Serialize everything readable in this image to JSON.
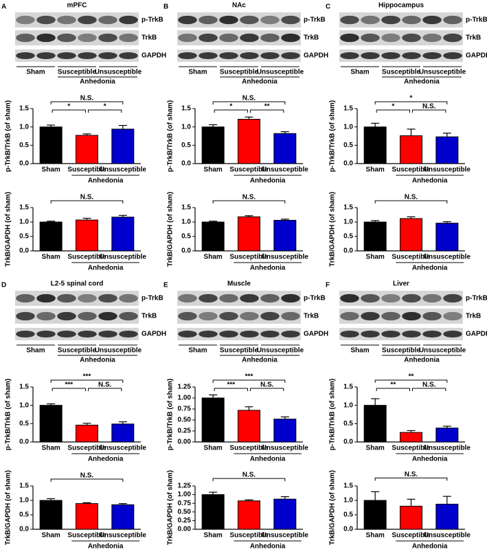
{
  "panels": [
    {
      "letter": "A",
      "title": "mPFC",
      "blot_rows": [
        "p-TrkB",
        "TrkB",
        "GAPDH"
      ],
      "groups": [
        "Sham",
        "Susceptible",
        "Unsusceptible"
      ],
      "group_label": "Anhedonia"
    },
    {
      "letter": "B",
      "title": "NAc",
      "blot_rows": [
        "p-TrkB",
        "TrkB",
        "GAPDH"
      ],
      "groups": [
        "Sham",
        "Susceptible",
        "Unsusceptible"
      ],
      "group_label": "Anhedonia"
    },
    {
      "letter": "C",
      "title": "Hippocampus",
      "blot_rows": [
        "p-TrkB",
        "TrkB",
        "GAPDH"
      ],
      "groups": [
        "Sham",
        "Susceptible",
        "Unsusceptible"
      ],
      "group_label": "Anhedonia"
    },
    {
      "letter": "D",
      "title": "L2-5 spinal cord",
      "blot_rows": [
        "p-TrkB",
        "TrkB",
        "GAPDH"
      ],
      "groups": [
        "Sham",
        "Susceptible",
        "Unsusceptible"
      ],
      "group_label": "Anhedonia"
    },
    {
      "letter": "E",
      "title": "Muscle",
      "blot_rows": [
        "p-TrkB",
        "TrkB",
        "GAPDH"
      ],
      "groups": [
        "Sham",
        "Susceptible",
        "Unsusceptible"
      ],
      "group_label": "Anhedonia"
    },
    {
      "letter": "F",
      "title": "Liver",
      "blot_rows": [
        "p-TrkB",
        "TrkB",
        "GAPDH"
      ],
      "groups": [
        "Sham",
        "Susceptible",
        "Unsusceptible"
      ],
      "group_label": "Anhedonia"
    }
  ],
  "chart_data": [
    {
      "type": "bar",
      "y_label": "p-TrkB/TrkB (of sham)",
      "categories": [
        "Sham",
        "Susceptible",
        "Unsusceptible"
      ],
      "group_label": "Anhedonia",
      "values": [
        1.0,
        0.77,
        0.94
      ],
      "errors": [
        0.05,
        0.04,
        0.1
      ],
      "colors": [
        "#000000",
        "#ff0000",
        "#0000cc"
      ],
      "ylim": [
        0,
        1.5
      ],
      "yticks": [
        {
          "value": 0,
          "label": "0.0"
        },
        {
          "value": 0.5,
          "label": "0.5"
        },
        {
          "value": 1,
          "label": "1.0"
        },
        {
          "value": 1.5,
          "label": "1.5"
        }
      ],
      "comparisons": [
        {
          "from": 0,
          "to": 1,
          "label": "*"
        },
        {
          "from": 1,
          "to": 2,
          "label": "*"
        },
        {
          "from": 0,
          "to": 2,
          "label": "N.S."
        }
      ]
    },
    {
      "type": "bar",
      "y_label": "TrkB/GAPDH (of sham)",
      "categories": [
        "Sham",
        "Susceptible",
        "Unsusceptible"
      ],
      "group_label": "Anhedonia",
      "values": [
        1.0,
        1.07,
        1.17
      ],
      "errors": [
        0.03,
        0.06,
        0.06
      ],
      "colors": [
        "#000000",
        "#ff0000",
        "#0000cc"
      ],
      "ylim": [
        0,
        1.5
      ],
      "yticks": [
        {
          "value": 0,
          "label": "0.0"
        },
        {
          "value": 0.5,
          "label": "0.5"
        },
        {
          "value": 1,
          "label": "1.0"
        },
        {
          "value": 1.5,
          "label": "1.5"
        }
      ],
      "comparisons": [
        {
          "from": 0,
          "to": 2,
          "label": "N.S."
        }
      ]
    },
    {
      "type": "bar",
      "y_label": "p-TrkB/TrkB (of sham)",
      "categories": [
        "Sham",
        "Susceptible",
        "Unsusceptible"
      ],
      "group_label": "Anhedonia",
      "values": [
        1.0,
        1.21,
        0.82
      ],
      "errors": [
        0.06,
        0.06,
        0.05
      ],
      "colors": [
        "#000000",
        "#ff0000",
        "#0000cc"
      ],
      "ylim": [
        0,
        1.5
      ],
      "yticks": [
        {
          "value": 0,
          "label": "0.0"
        },
        {
          "value": 0.5,
          "label": "0.5"
        },
        {
          "value": 1,
          "label": "1.0"
        },
        {
          "value": 1.5,
          "label": "1.5"
        }
      ],
      "comparisons": [
        {
          "from": 0,
          "to": 1,
          "label": "*"
        },
        {
          "from": 1,
          "to": 2,
          "label": "**"
        },
        {
          "from": 0,
          "to": 2,
          "label": "N.S."
        }
      ]
    },
    {
      "type": "bar",
      "y_label": "TrkB/GAPDH (of sham)",
      "categories": [
        "Sham",
        "Susceptible",
        "Unsusceptible"
      ],
      "group_label": "Anhedonia",
      "values": [
        1.0,
        1.18,
        1.06
      ],
      "errors": [
        0.03,
        0.04,
        0.04
      ],
      "colors": [
        "#000000",
        "#ff0000",
        "#0000cc"
      ],
      "ylim": [
        0,
        1.5
      ],
      "yticks": [
        {
          "value": 0,
          "label": "0.0"
        },
        {
          "value": 0.5,
          "label": "0.5"
        },
        {
          "value": 1,
          "label": "1.0"
        },
        {
          "value": 1.5,
          "label": "1.5"
        }
      ],
      "comparisons": [
        {
          "from": 0,
          "to": 2,
          "label": "N.S."
        }
      ]
    },
    {
      "type": "bar",
      "y_label": "p-TrkB/TrkB (of sham)",
      "categories": [
        "Sham",
        "Susceptible",
        "Unsusceptible"
      ],
      "group_label": "Anhedonia",
      "values": [
        1.0,
        0.76,
        0.73
      ],
      "errors": [
        0.1,
        0.18,
        0.1
      ],
      "colors": [
        "#000000",
        "#ff0000",
        "#0000cc"
      ],
      "ylim": [
        0,
        1.5
      ],
      "yticks": [
        {
          "value": 0,
          "label": "0.0"
        },
        {
          "value": 0.5,
          "label": "0.5"
        },
        {
          "value": 1,
          "label": "1.0"
        },
        {
          "value": 1.5,
          "label": "1.5"
        }
      ],
      "comparisons": [
        {
          "from": 0,
          "to": 1,
          "label": "*"
        },
        {
          "from": 1,
          "to": 2,
          "label": "N.S."
        },
        {
          "from": 0,
          "to": 2,
          "label": "*"
        }
      ]
    },
    {
      "type": "bar",
      "y_label": "TrkB/GAPDH (of sham)",
      "categories": [
        "Sham",
        "Susceptible",
        "Unsusceptible"
      ],
      "group_label": "Anhedonia",
      "values": [
        1.0,
        1.12,
        0.96
      ],
      "errors": [
        0.05,
        0.06,
        0.05
      ],
      "colors": [
        "#000000",
        "#ff0000",
        "#0000cc"
      ],
      "ylim": [
        0,
        1.5
      ],
      "yticks": [
        {
          "value": 0,
          "label": "0.0"
        },
        {
          "value": 0.5,
          "label": "0.5"
        },
        {
          "value": 1,
          "label": "1.0"
        },
        {
          "value": 1.5,
          "label": "1.5"
        }
      ],
      "comparisons": [
        {
          "from": 0,
          "to": 2,
          "label": "N.S."
        }
      ]
    },
    {
      "type": "bar",
      "y_label": "p-TrkB/TrkB (of sham)",
      "categories": [
        "Sham",
        "Susceptible",
        "Unsusceptible"
      ],
      "group_label": "Anhedonia",
      "values": [
        1.0,
        0.46,
        0.49
      ],
      "errors": [
        0.04,
        0.05,
        0.06
      ],
      "colors": [
        "#000000",
        "#ff0000",
        "#0000cc"
      ],
      "ylim": [
        0,
        1.5
      ],
      "yticks": [
        {
          "value": 0,
          "label": "0.0"
        },
        {
          "value": 0.5,
          "label": "0.5"
        },
        {
          "value": 1,
          "label": "1.0"
        },
        {
          "value": 1.5,
          "label": "1.5"
        }
      ],
      "comparisons": [
        {
          "from": 0,
          "to": 1,
          "label": "***"
        },
        {
          "from": 1,
          "to": 2,
          "label": "N.S."
        },
        {
          "from": 0,
          "to": 2,
          "label": "***"
        }
      ]
    },
    {
      "type": "bar",
      "y_label": "TrkB/GAPDH (of sham)",
      "categories": [
        "Sham",
        "Susceptible",
        "Unsusceptible"
      ],
      "group_label": "Anhedonia",
      "values": [
        1.0,
        0.89,
        0.85
      ],
      "errors": [
        0.06,
        0.03,
        0.04
      ],
      "colors": [
        "#000000",
        "#ff0000",
        "#0000cc"
      ],
      "ylim": [
        0,
        1.5
      ],
      "yticks": [
        {
          "value": 0,
          "label": "0.0"
        },
        {
          "value": 0.5,
          "label": "0.5"
        },
        {
          "value": 1,
          "label": "1.0"
        },
        {
          "value": 1.5,
          "label": "1.5"
        }
      ],
      "comparisons": [
        {
          "from": 0,
          "to": 2,
          "label": "N.S."
        }
      ]
    },
    {
      "type": "bar",
      "y_label": "p-TrkB/TrkB (of sham)",
      "categories": [
        "Sham",
        "Susceptible",
        "Unsusceptible"
      ],
      "group_label": "Anhedonia",
      "values": [
        1.0,
        0.72,
        0.52
      ],
      "errors": [
        0.07,
        0.08,
        0.05
      ],
      "colors": [
        "#000000",
        "#ff0000",
        "#0000cc"
      ],
      "ylim": [
        0,
        1.25
      ],
      "yticks": [
        {
          "value": 0,
          "label": "0.00"
        },
        {
          "value": 0.25,
          "label": "0.25"
        },
        {
          "value": 0.5,
          "label": "0.50"
        },
        {
          "value": 0.75,
          "label": "0.75"
        },
        {
          "value": 1,
          "label": "1.00"
        },
        {
          "value": 1.25,
          "label": "1.25"
        }
      ],
      "comparisons": [
        {
          "from": 0,
          "to": 1,
          "label": "***"
        },
        {
          "from": 1,
          "to": 2,
          "label": "N.S."
        },
        {
          "from": 0,
          "to": 2,
          "label": "***"
        }
      ]
    },
    {
      "type": "bar",
      "y_label": "TrkB/GAPDH (of sham)",
      "categories": [
        "Sham",
        "Susceptible",
        "Unsusceptible"
      ],
      "group_label": "Anhedonia",
      "values": [
        1.0,
        0.82,
        0.87
      ],
      "errors": [
        0.07,
        0.03,
        0.07
      ],
      "colors": [
        "#000000",
        "#ff0000",
        "#0000cc"
      ],
      "ylim": [
        0,
        1.25
      ],
      "yticks": [
        {
          "value": 0,
          "label": "0.00"
        },
        {
          "value": 0.25,
          "label": "0.25"
        },
        {
          "value": 0.5,
          "label": "0.50"
        },
        {
          "value": 0.75,
          "label": "0.75"
        },
        {
          "value": 1,
          "label": "1.00"
        },
        {
          "value": 1.25,
          "label": "1.25"
        }
      ],
      "comparisons": [
        {
          "from": 0,
          "to": 2,
          "label": "N.S."
        }
      ]
    },
    {
      "type": "bar",
      "y_label": "p-TrkB/TrkB (of sham)",
      "categories": [
        "Sham",
        "Susceptible",
        "Unsusceptible"
      ],
      "group_label": "Anhedonia",
      "values": [
        1.0,
        0.26,
        0.38
      ],
      "errors": [
        0.18,
        0.05,
        0.05
      ],
      "colors": [
        "#000000",
        "#ff0000",
        "#0000cc"
      ],
      "ylim": [
        0,
        1.5
      ],
      "yticks": [
        {
          "value": 0,
          "label": "0.0"
        },
        {
          "value": 0.5,
          "label": "0.5"
        },
        {
          "value": 1,
          "label": "1.0"
        },
        {
          "value": 1.5,
          "label": "1.5"
        }
      ],
      "comparisons": [
        {
          "from": 0,
          "to": 1,
          "label": "**"
        },
        {
          "from": 1,
          "to": 2,
          "label": "N.S."
        },
        {
          "from": 0,
          "to": 2,
          "label": "**"
        }
      ]
    },
    {
      "type": "bar",
      "y_label": "TrkB/GAPDH (of sham)",
      "categories": [
        "Sham",
        "Susceptible",
        "Unsusceptible"
      ],
      "group_label": "Anhedonia",
      "values": [
        1.0,
        0.8,
        0.87
      ],
      "errors": [
        0.3,
        0.24,
        0.27
      ],
      "colors": [
        "#000000",
        "#ff0000",
        "#0000cc"
      ],
      "ylim": [
        0,
        1.5
      ],
      "yticks": [
        {
          "value": 0,
          "label": "0.0"
        },
        {
          "value": 0.5,
          "label": "0.5"
        },
        {
          "value": 1,
          "label": "1.0"
        },
        {
          "value": 1.5,
          "label": "1.5"
        }
      ],
      "comparisons": [
        {
          "from": 0,
          "to": 2,
          "label": "N.S."
        }
      ]
    }
  ]
}
